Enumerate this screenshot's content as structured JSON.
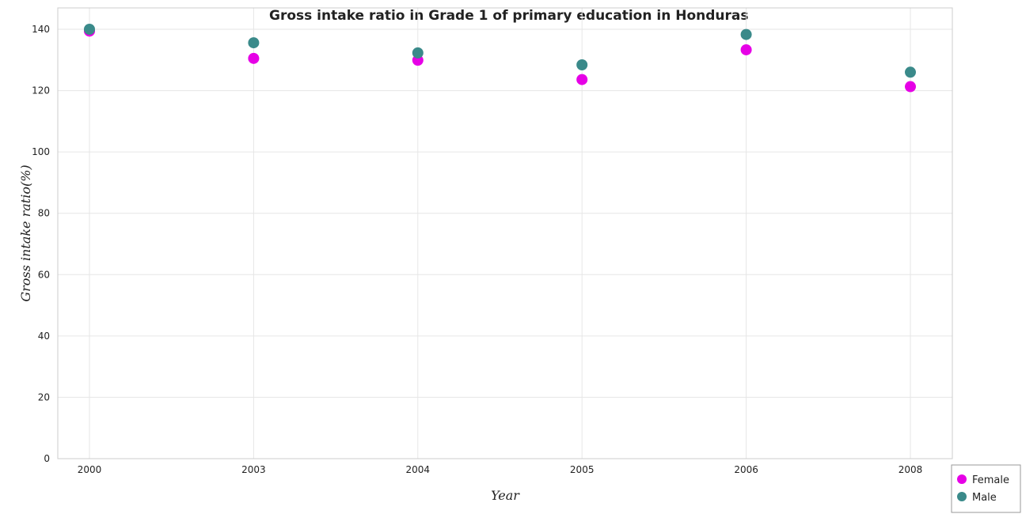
{
  "chart_data": {
    "type": "scatter",
    "title": "Gross intake ratio in Grade 1 of primary education in Honduras",
    "xlabel": "Year",
    "ylabel": "Gross intake ratio(%)",
    "categories": [
      "2000",
      "2003",
      "2004",
      "2005",
      "2006",
      "2008"
    ],
    "ylim": [
      0,
      140
    ],
    "yticks": [
      0,
      20,
      40,
      60,
      80,
      100,
      120,
      140
    ],
    "grid": true,
    "legend_position": "bottom-right",
    "series": [
      {
        "name": "Female",
        "color": "#e600e6",
        "values": [
          139.4,
          130.5,
          129.9,
          123.6,
          133.3,
          121.3
        ]
      },
      {
        "name": "Male",
        "color": "#3a8a8a",
        "values": [
          140.0,
          135.6,
          132.3,
          128.4,
          138.3,
          126.0
        ]
      }
    ]
  }
}
